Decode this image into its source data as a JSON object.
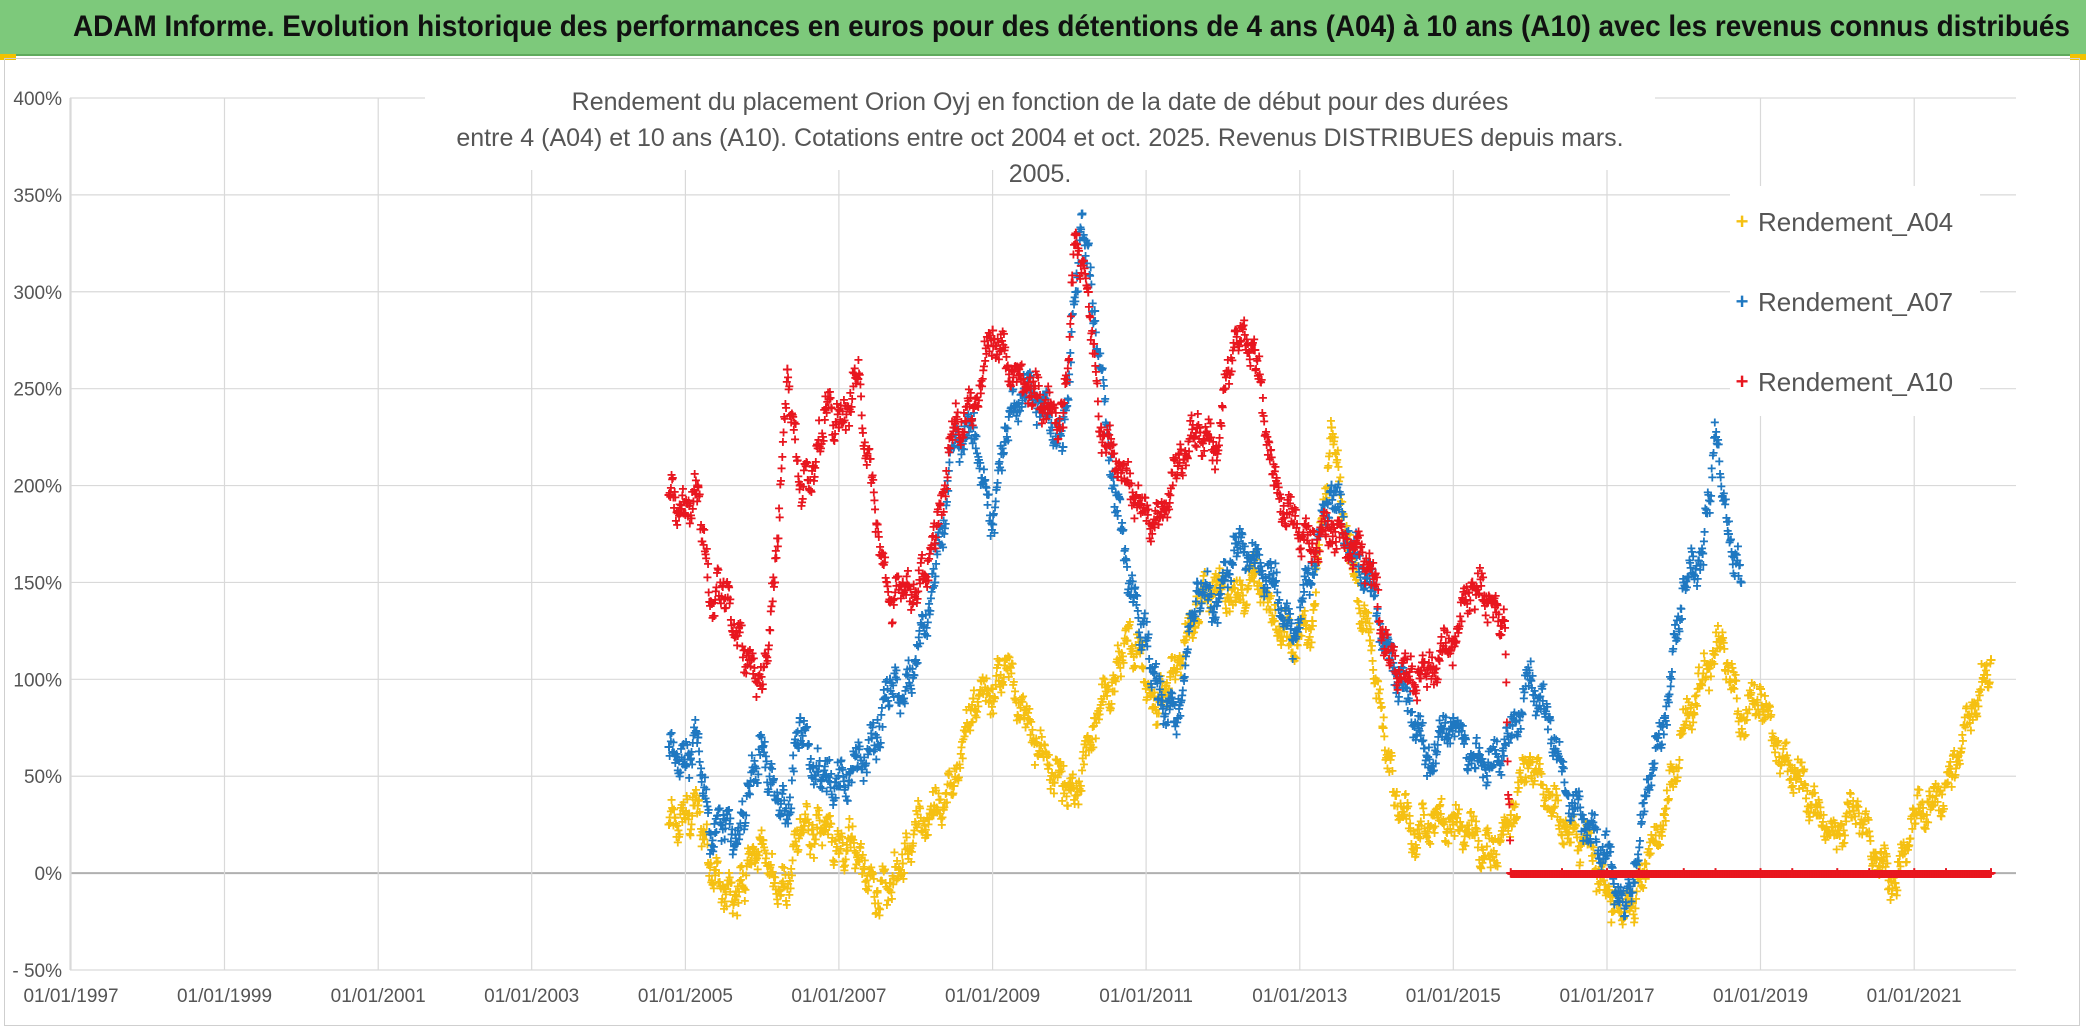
{
  "page_title": "ADAM Informe. Evolution historique des performances en euros pour des détentions de 4 ans (A04) à 10 ans (A10) avec les revenus connus distribués",
  "chart_data": {
    "type": "scatter",
    "title_lines": [
      "Rendement du placement Orion Oyj en fonction de la date de début pour des durées",
      "entre 4 (A04) et 10 ans (A10). Cotations entre oct 2004 et oct. 2025. Revenus DISTRIBUES depuis mars. 2005."
    ],
    "xlabel": "",
    "ylabel": "",
    "marker": "+",
    "x_tick_labels": [
      "01/01/1997",
      "01/01/1999",
      "01/01/2001",
      "01/01/2003",
      "01/01/2005",
      "01/01/2007",
      "01/01/2009",
      "01/01/2011",
      "01/01/2013",
      "01/01/2015",
      "01/01/2017",
      "01/01/2019",
      "01/01/2021"
    ],
    "x_range": [
      "1997-01-01",
      "2022-01-01"
    ],
    "y_ticks": [
      -50,
      0,
      50,
      100,
      150,
      200,
      250,
      300,
      350,
      400
    ],
    "y_tick_labels": [
      "- 50%",
      "0%",
      "50%",
      "100%",
      "150%",
      "200%",
      "250%",
      "300%",
      "350%",
      "400%"
    ],
    "ylim": [
      -50,
      400
    ],
    "grid": true,
    "legend_position": "top-right",
    "series": [
      {
        "name": "Rendement_A04",
        "color": "#f5c012",
        "points": [
          [
            "2004-10-15",
            25
          ],
          [
            "2005-01-01",
            28
          ],
          [
            "2005-03-01",
            35
          ],
          [
            "2005-05-01",
            5
          ],
          [
            "2005-07-01",
            -8
          ],
          [
            "2005-09-01",
            -12
          ],
          [
            "2005-11-01",
            5
          ],
          [
            "2006-01-01",
            15
          ],
          [
            "2006-03-01",
            -5
          ],
          [
            "2006-05-01",
            -8
          ],
          [
            "2006-07-01",
            28
          ],
          [
            "2006-09-01",
            20
          ],
          [
            "2006-11-01",
            25
          ],
          [
            "2007-01-01",
            10
          ],
          [
            "2007-03-01",
            18
          ],
          [
            "2007-05-01",
            2
          ],
          [
            "2007-07-01",
            -10
          ],
          [
            "2007-09-01",
            -5
          ],
          [
            "2007-11-01",
            5
          ],
          [
            "2008-01-01",
            25
          ],
          [
            "2008-04-01",
            32
          ],
          [
            "2008-07-01",
            45
          ],
          [
            "2008-10-01",
            90
          ],
          [
            "2009-01-01",
            95
          ],
          [
            "2009-03-01",
            110
          ],
          [
            "2009-06-01",
            80
          ],
          [
            "2009-09-01",
            60
          ],
          [
            "2009-12-01",
            45
          ],
          [
            "2010-02-01",
            40
          ],
          [
            "2010-05-01",
            80
          ],
          [
            "2010-08-01",
            100
          ],
          [
            "2010-10-01",
            120
          ],
          [
            "2010-12-01",
            115
          ],
          [
            "2011-02-01",
            85
          ],
          [
            "2011-04-01",
            95
          ],
          [
            "2011-06-01",
            110
          ],
          [
            "2011-09-01",
            140
          ],
          [
            "2011-12-01",
            150
          ],
          [
            "2012-03-01",
            140
          ],
          [
            "2012-06-01",
            155
          ],
          [
            "2012-09-01",
            130
          ],
          [
            "2012-12-01",
            120
          ],
          [
            "2013-03-01",
            130
          ],
          [
            "2013-06-01",
            230
          ],
          [
            "2013-09-01",
            160
          ],
          [
            "2013-12-01",
            120
          ],
          [
            "2014-02-01",
            75
          ],
          [
            "2014-04-01",
            40
          ],
          [
            "2014-07-01",
            20
          ],
          [
            "2014-10-01",
            30
          ],
          [
            "2015-01-01",
            25
          ],
          [
            "2015-04-01",
            20
          ],
          [
            "2015-07-01",
            10
          ],
          [
            "2015-10-01",
            30
          ],
          [
            "2016-01-01",
            60
          ],
          [
            "2016-04-01",
            40
          ],
          [
            "2016-07-01",
            20
          ],
          [
            "2016-10-01",
            15
          ],
          [
            "2017-01-01",
            -10
          ],
          [
            "2017-03-01",
            -20
          ],
          [
            "2017-05-01",
            -15
          ],
          [
            "2017-07-01",
            5
          ],
          [
            "2017-10-01",
            30
          ],
          [
            "2018-01-01",
            75
          ],
          [
            "2018-04-01",
            100
          ],
          [
            "2018-07-01",
            120
          ],
          [
            "2018-10-01",
            80
          ],
          [
            "2019-01-01",
            95
          ],
          [
            "2019-04-01",
            60
          ],
          [
            "2019-07-01",
            50
          ],
          [
            "2019-10-01",
            30
          ],
          [
            "2020-01-01",
            20
          ],
          [
            "2020-04-01",
            35
          ],
          [
            "2020-07-01",
            10
          ],
          [
            "2020-10-01",
            -5
          ],
          [
            "2021-01-01",
            30
          ],
          [
            "2021-04-01",
            35
          ],
          [
            "2021-07-01",
            50
          ],
          [
            "2021-10-01",
            85
          ],
          [
            "2022-01-01",
            110
          ]
        ]
      },
      {
        "name": "Rendement_A07",
        "color": "#1f78c1",
        "points": [
          [
            "2004-10-15",
            65
          ],
          [
            "2005-01-01",
            55
          ],
          [
            "2005-03-01",
            70
          ],
          [
            "2005-05-01",
            20
          ],
          [
            "2005-07-01",
            30
          ],
          [
            "2005-09-01",
            15
          ],
          [
            "2005-11-01",
            45
          ],
          [
            "2006-01-01",
            65
          ],
          [
            "2006-03-01",
            40
          ],
          [
            "2006-05-01",
            30
          ],
          [
            "2006-07-01",
            80
          ],
          [
            "2006-09-01",
            55
          ],
          [
            "2006-11-01",
            50
          ],
          [
            "2007-01-01",
            45
          ],
          [
            "2007-04-01",
            55
          ],
          [
            "2007-07-01",
            70
          ],
          [
            "2007-09-01",
            100
          ],
          [
            "2007-11-01",
            90
          ],
          [
            "2008-01-01",
            110
          ],
          [
            "2008-04-01",
            150
          ],
          [
            "2008-07-01",
            220
          ],
          [
            "2008-10-01",
            230
          ],
          [
            "2009-01-01",
            180
          ],
          [
            "2009-03-01",
            230
          ],
          [
            "2009-06-01",
            250
          ],
          [
            "2009-09-01",
            240
          ],
          [
            "2009-12-01",
            220
          ],
          [
            "2010-02-01",
            300
          ],
          [
            "2010-03-01",
            340
          ],
          [
            "2010-05-01",
            290
          ],
          [
            "2010-08-01",
            200
          ],
          [
            "2010-11-01",
            140
          ],
          [
            "2011-01-01",
            120
          ],
          [
            "2011-03-01",
            90
          ],
          [
            "2011-06-01",
            80
          ],
          [
            "2011-09-01",
            150
          ],
          [
            "2011-12-01",
            140
          ],
          [
            "2012-03-01",
            170
          ],
          [
            "2012-06-01",
            160
          ],
          [
            "2012-09-01",
            150
          ],
          [
            "2012-12-01",
            120
          ],
          [
            "2013-03-01",
            160
          ],
          [
            "2013-06-01",
            200
          ],
          [
            "2013-09-01",
            170
          ],
          [
            "2013-12-01",
            150
          ],
          [
            "2014-03-01",
            110
          ],
          [
            "2014-06-01",
            90
          ],
          [
            "2014-09-01",
            60
          ],
          [
            "2015-01-01",
            80
          ],
          [
            "2015-04-01",
            60
          ],
          [
            "2015-07-01",
            55
          ],
          [
            "2015-10-01",
            70
          ],
          [
            "2016-01-01",
            100
          ],
          [
            "2016-04-01",
            80
          ],
          [
            "2016-07-01",
            40
          ],
          [
            "2016-10-01",
            25
          ],
          [
            "2017-01-01",
            10
          ],
          [
            "2017-03-01",
            -15
          ],
          [
            "2017-05-01",
            -10
          ],
          [
            "2017-07-01",
            40
          ],
          [
            "2017-10-01",
            80
          ],
          [
            "2018-01-01",
            150
          ],
          [
            "2018-04-01",
            165
          ],
          [
            "2018-06-01",
            225
          ],
          [
            "2018-08-01",
            175
          ],
          [
            "2018-10-01",
            150
          ]
        ]
      },
      {
        "name": "Rendement_A10",
        "color": "#e8161f",
        "points": [
          [
            "2004-10-15",
            195
          ],
          [
            "2005-01-01",
            185
          ],
          [
            "2005-03-01",
            200
          ],
          [
            "2005-05-01",
            140
          ],
          [
            "2005-07-01",
            150
          ],
          [
            "2005-09-01",
            125
          ],
          [
            "2005-11-01",
            110
          ],
          [
            "2006-01-01",
            95
          ],
          [
            "2006-03-01",
            150
          ],
          [
            "2006-05-01",
            260
          ],
          [
            "2006-07-01",
            200
          ],
          [
            "2006-09-01",
            210
          ],
          [
            "2006-11-01",
            240
          ],
          [
            "2007-01-01",
            230
          ],
          [
            "2007-04-01",
            255
          ],
          [
            "2007-07-01",
            180
          ],
          [
            "2007-09-01",
            140
          ],
          [
            "2007-11-01",
            150
          ],
          [
            "2008-01-01",
            145
          ],
          [
            "2008-04-01",
            170
          ],
          [
            "2008-07-01",
            230
          ],
          [
            "2008-10-01",
            240
          ],
          [
            "2009-01-01",
            280
          ],
          [
            "2009-04-01",
            260
          ],
          [
            "2009-07-01",
            250
          ],
          [
            "2009-10-01",
            240
          ],
          [
            "2009-12-01",
            230
          ],
          [
            "2010-02-01",
            330
          ],
          [
            "2010-04-01",
            300
          ],
          [
            "2010-06-01",
            230
          ],
          [
            "2010-09-01",
            210
          ],
          [
            "2010-12-01",
            190
          ],
          [
            "2011-03-01",
            180
          ],
          [
            "2011-06-01",
            210
          ],
          [
            "2011-09-01",
            230
          ],
          [
            "2011-12-01",
            220
          ],
          [
            "2012-03-01",
            280
          ],
          [
            "2012-06-01",
            270
          ],
          [
            "2012-09-01",
            200
          ],
          [
            "2012-12-01",
            180
          ],
          [
            "2013-03-01",
            170
          ],
          [
            "2013-06-01",
            180
          ],
          [
            "2013-09-01",
            170
          ],
          [
            "2013-12-01",
            160
          ],
          [
            "2014-03-01",
            110
          ],
          [
            "2014-06-01",
            100
          ],
          [
            "2014-09-01",
            105
          ],
          [
            "2015-01-01",
            120
          ],
          [
            "2015-04-01",
            150
          ],
          [
            "2015-07-01",
            140
          ],
          [
            "2015-09-01",
            130
          ],
          [
            "2015-10-01",
            0
          ],
          [
            "2016-06-01",
            0
          ],
          [
            "2017-01-01",
            0
          ],
          [
            "2017-06-01",
            0
          ],
          [
            "2018-01-01",
            0
          ],
          [
            "2018-06-01",
            0
          ],
          [
            "2019-01-01",
            0
          ],
          [
            "2019-06-01",
            0
          ],
          [
            "2020-01-01",
            0
          ],
          [
            "2020-06-01",
            0
          ],
          [
            "2021-01-01",
            0
          ],
          [
            "2021-06-01",
            0
          ],
          [
            "2022-01-01",
            0
          ]
        ]
      }
    ]
  }
}
